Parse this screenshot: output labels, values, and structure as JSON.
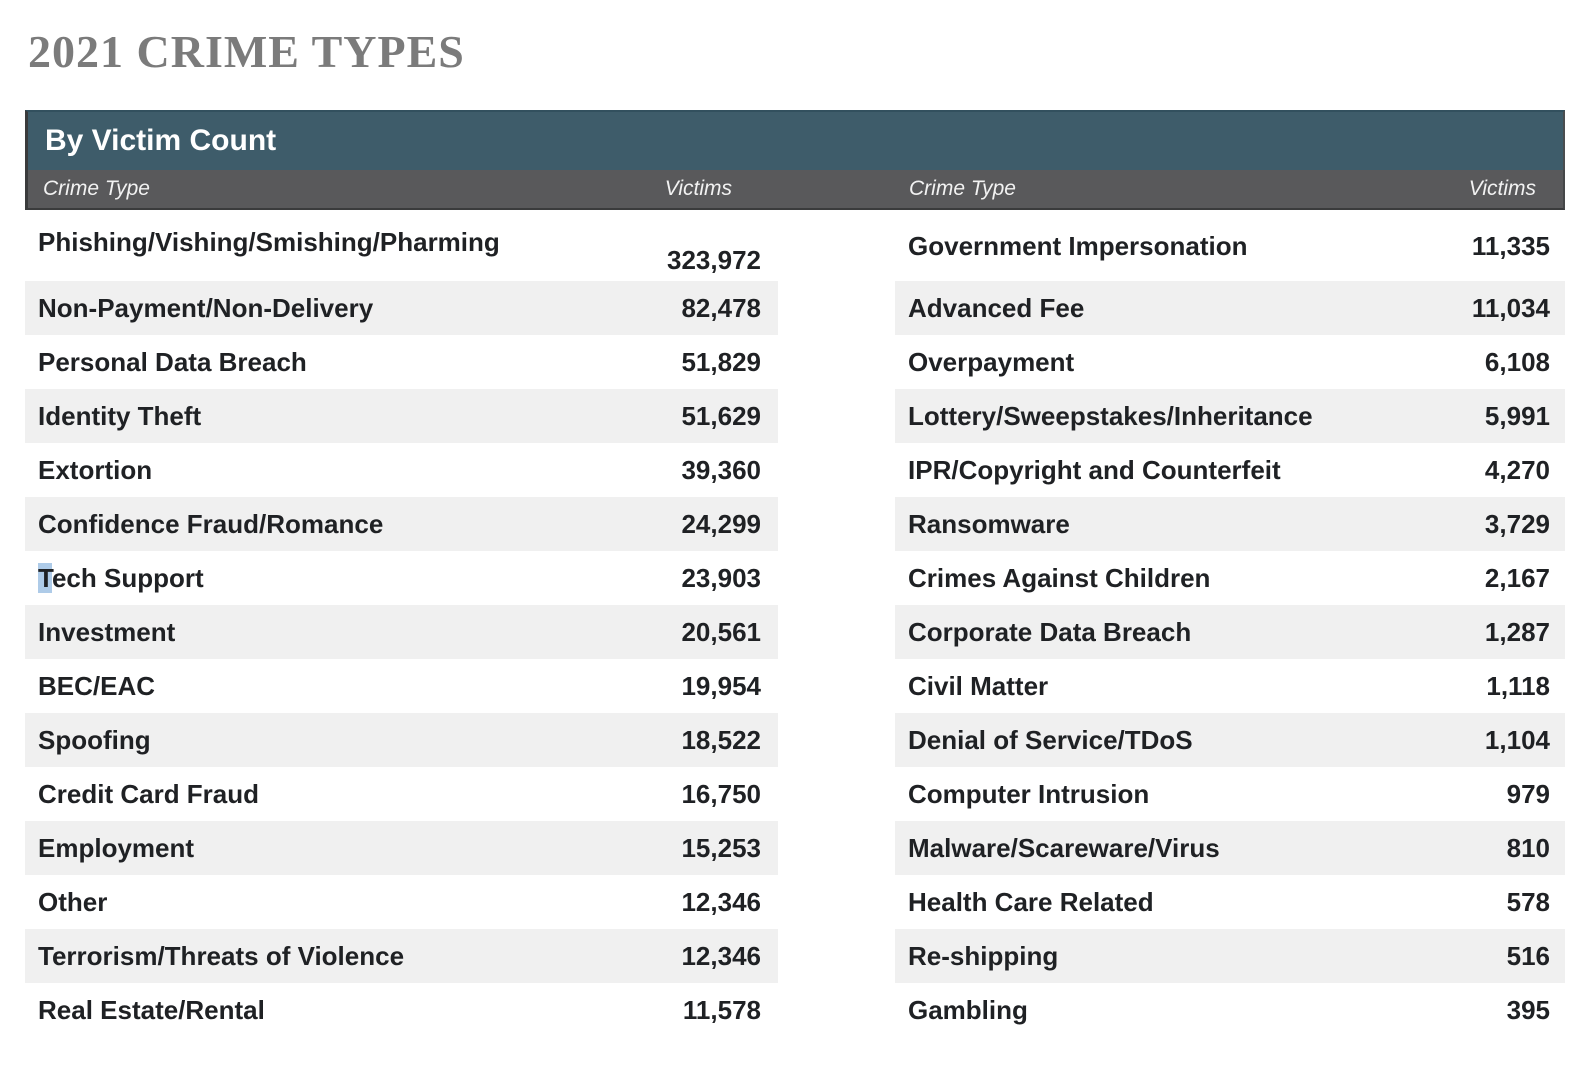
{
  "page_title": "2021 CRIME TYPES",
  "table": {
    "header": "By Victim Count",
    "columns": {
      "crime_type_label": "Crime Type",
      "victims_label": "Victims"
    },
    "left_rows": [
      {
        "crime_type": "Phishing/Vishing/Smishing/Pharming",
        "victims": "323,972"
      },
      {
        "crime_type": "Non-Payment/Non-Delivery",
        "victims": "82,478"
      },
      {
        "crime_type": "Personal Data Breach",
        "victims": "51,829"
      },
      {
        "crime_type": "Identity Theft",
        "victims": "51,629"
      },
      {
        "crime_type": "Extortion",
        "victims": "39,360"
      },
      {
        "crime_type": "Confidence Fraud/Romance",
        "victims": "24,299"
      },
      {
        "crime_type": "Tech Support",
        "victims": "23,903",
        "first_char_highlight": true
      },
      {
        "crime_type": "Investment",
        "victims": "20,561"
      },
      {
        "crime_type": "BEC/EAC",
        "victims": "19,954"
      },
      {
        "crime_type": "Spoofing",
        "victims": "18,522"
      },
      {
        "crime_type": "Credit Card Fraud",
        "victims": "16,750"
      },
      {
        "crime_type": "Employment",
        "victims": "15,253"
      },
      {
        "crime_type": "Other",
        "victims": "12,346"
      },
      {
        "crime_type": "Terrorism/Threats of Violence",
        "victims": "12,346"
      },
      {
        "crime_type": "Real Estate/Rental",
        "victims": "11,578"
      }
    ],
    "right_rows": [
      {
        "crime_type": "Government Impersonation",
        "victims": "11,335"
      },
      {
        "crime_type": "Advanced Fee",
        "victims": "11,034"
      },
      {
        "crime_type": "Overpayment",
        "victims": "6,108"
      },
      {
        "crime_type": "Lottery/Sweepstakes/Inheritance",
        "victims": "5,991"
      },
      {
        "crime_type": "IPR/Copyright and Counterfeit",
        "victims": "4,270"
      },
      {
        "crime_type": "Ransomware",
        "victims": "3,729"
      },
      {
        "crime_type": "Crimes Against Children",
        "victims": "2,167"
      },
      {
        "crime_type": "Corporate Data Breach",
        "victims": "1,287"
      },
      {
        "crime_type": "Civil Matter",
        "victims": "1,118"
      },
      {
        "crime_type": "Denial of Service/TDoS",
        "victims": "1,104"
      },
      {
        "crime_type": "Computer Intrusion",
        "victims": "979"
      },
      {
        "crime_type": "Malware/Scareware/Virus",
        "victims": "810"
      },
      {
        "crime_type": "Health Care Related",
        "victims": "578"
      },
      {
        "crime_type": "Re-shipping",
        "victims": "516"
      },
      {
        "crime_type": "Gambling",
        "victims": "395"
      }
    ]
  },
  "colors": {
    "header_teal": "#3e5c6a",
    "header_gray": "#59595b",
    "row_stripe": "#f0f0f0",
    "title_gray": "#7b7b7b",
    "text_dark": "#1f2124",
    "selection_highlight_blue": "#aecbe8"
  }
}
